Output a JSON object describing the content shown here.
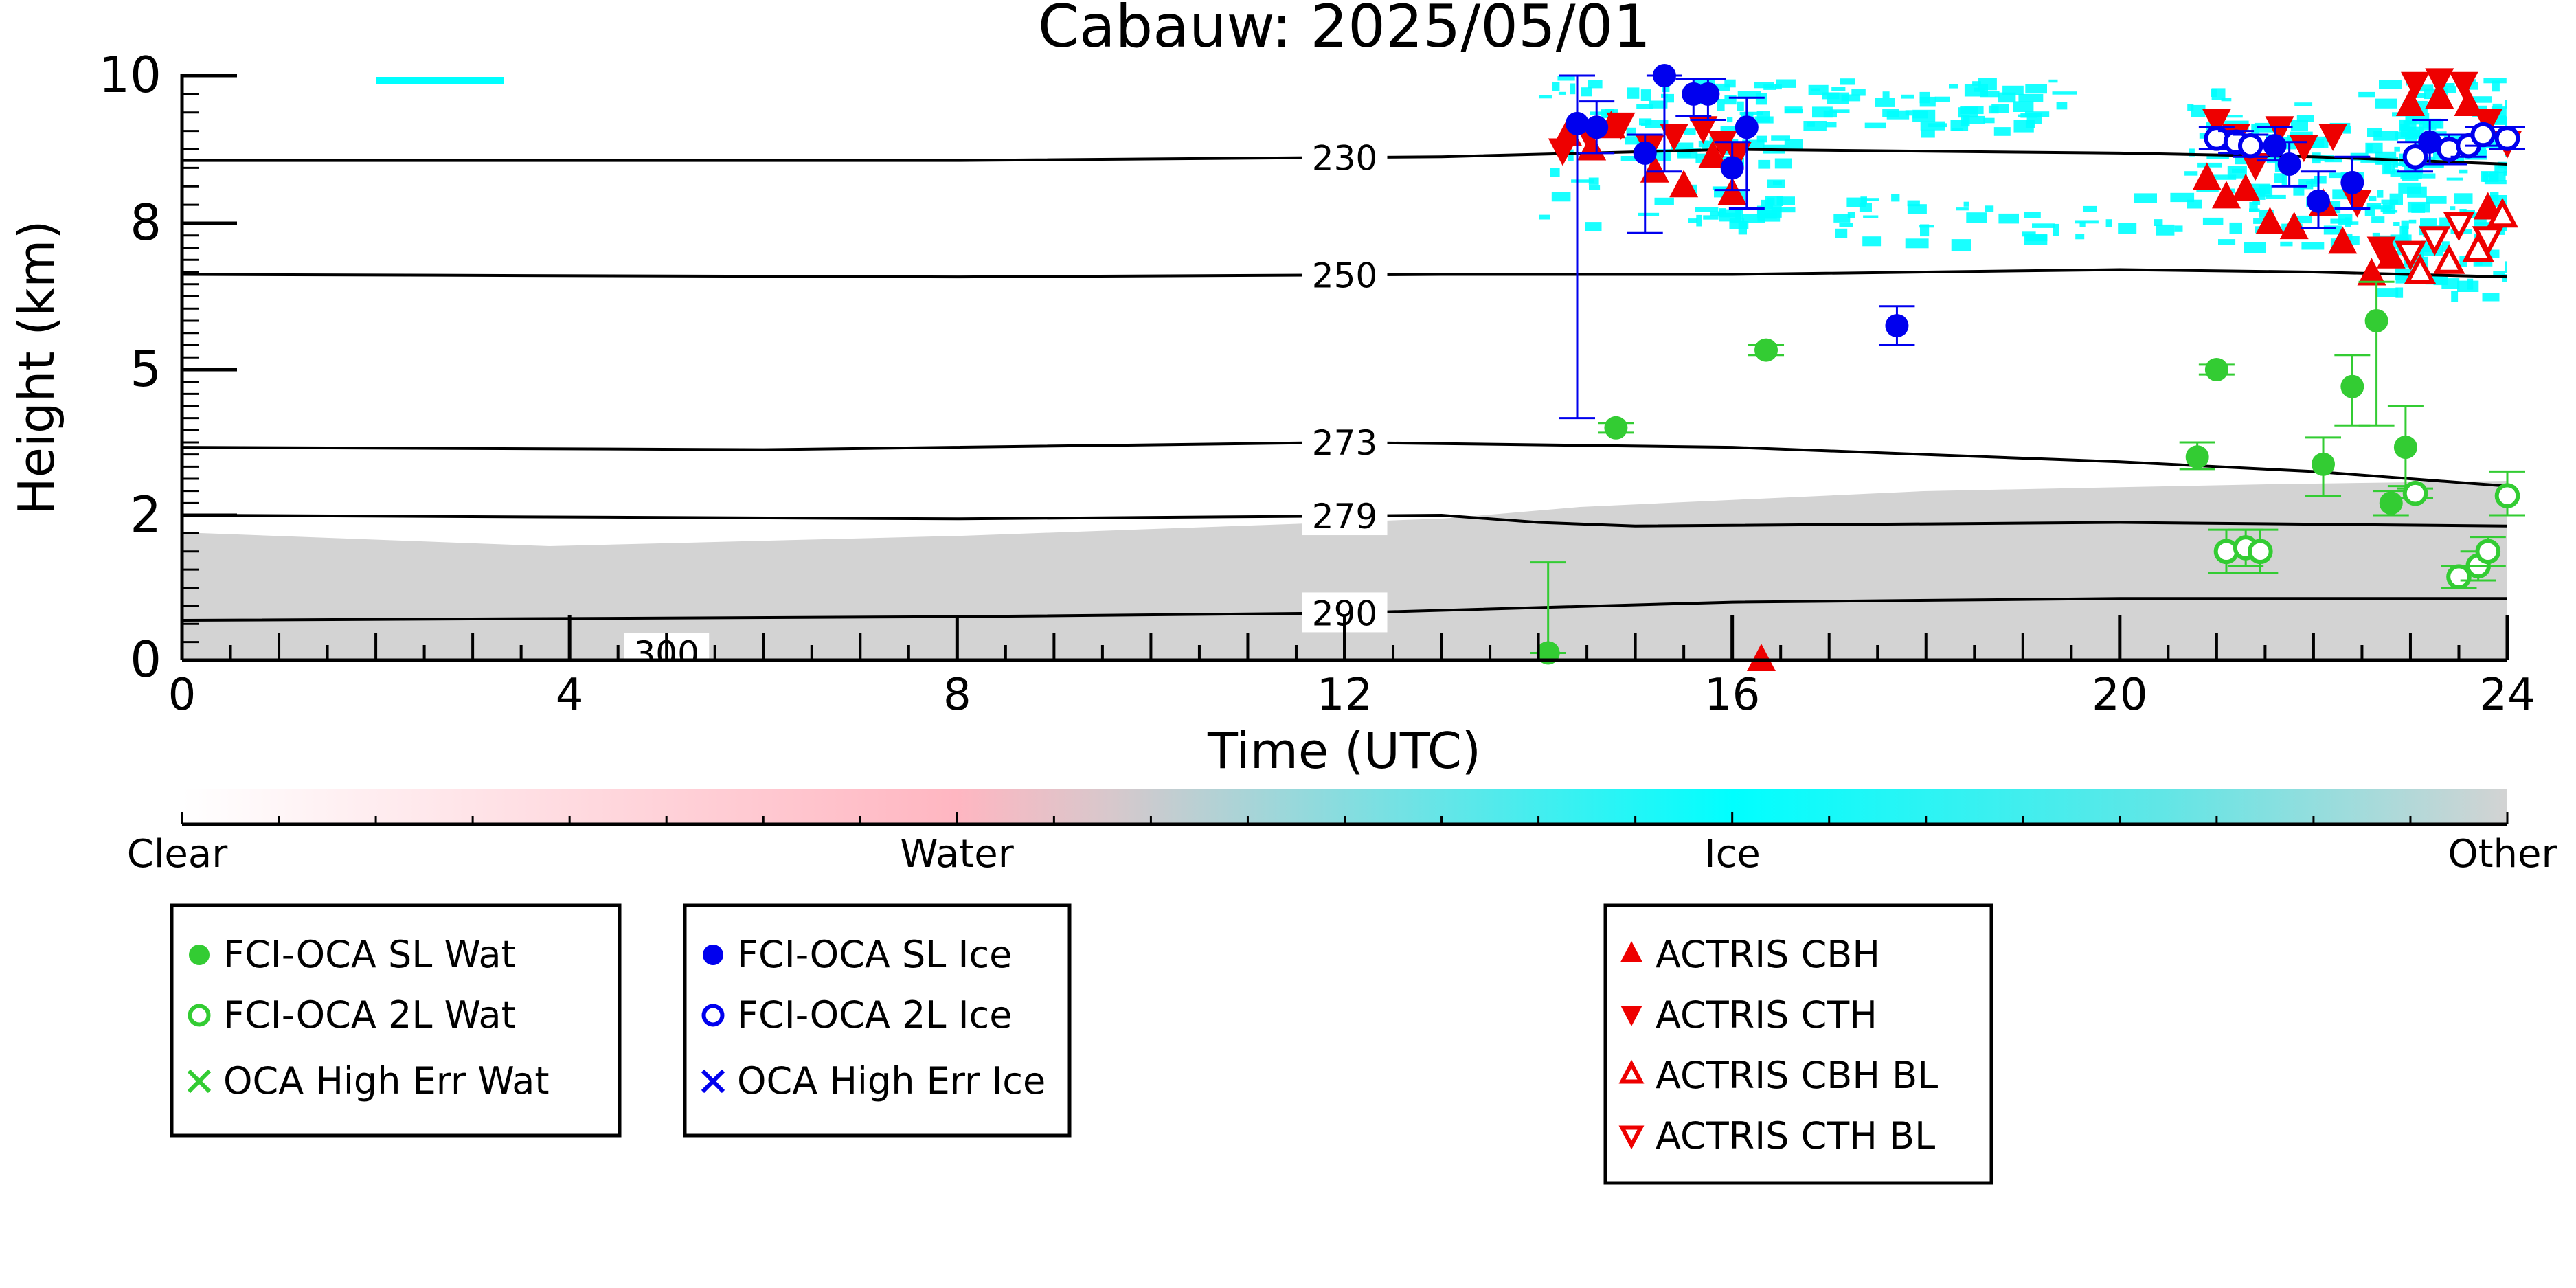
{
  "chart_data": {
    "type": "scatter",
    "title": "Cabauw: 2025/05/01",
    "xlabel": "Time (UTC)",
    "ylabel": "Height (km)",
    "xlim": [
      0,
      24
    ],
    "ylim": [
      0,
      10
    ],
    "x_ticks": [
      0,
      4,
      8,
      12,
      16,
      20,
      24
    ],
    "y_ticks": [
      0,
      2,
      5,
      8,
      10
    ],
    "y_tick_labels": [
      "0",
      "2",
      "5",
      "8",
      "10"
    ],
    "y_scale": "nonlinear",
    "colorbar": {
      "labels": [
        "Clear",
        "Water",
        "Ice",
        "Other"
      ],
      "colors": [
        "#ffffff",
        "#ffb6c1",
        "#00ffff",
        "#d3d3d3"
      ]
    },
    "temperature_contours": [
      {
        "label": "230",
        "points": [
          [
            0,
            8.85
          ],
          [
            8,
            8.85
          ],
          [
            13,
            8.9
          ],
          [
            16,
            9.0
          ],
          [
            20,
            8.95
          ],
          [
            22,
            8.9
          ],
          [
            24,
            8.8
          ]
        ]
      },
      {
        "label": "250",
        "points": [
          [
            0,
            6.95
          ],
          [
            8,
            6.9
          ],
          [
            13,
            6.95
          ],
          [
            16,
            6.95
          ],
          [
            20,
            7.05
          ],
          [
            22,
            7.0
          ],
          [
            24,
            6.9
          ]
        ]
      },
      {
        "label": "273",
        "points": [
          [
            0,
            3.4
          ],
          [
            6,
            3.35
          ],
          [
            12,
            3.5
          ],
          [
            16,
            3.4
          ],
          [
            20,
            3.1
          ],
          [
            22,
            2.9
          ],
          [
            24,
            2.6
          ]
        ]
      },
      {
        "label": "279",
        "points": [
          [
            0,
            2.0
          ],
          [
            8,
            1.95
          ],
          [
            13,
            2.0
          ],
          [
            14,
            1.9
          ],
          [
            15,
            1.85
          ],
          [
            20,
            1.9
          ],
          [
            24,
            1.85
          ]
        ]
      },
      {
        "label": "290",
        "points": [
          [
            0,
            0.55
          ],
          [
            8,
            0.6
          ],
          [
            12,
            0.65
          ],
          [
            16,
            0.8
          ],
          [
            20,
            0.85
          ],
          [
            24,
            0.85
          ]
        ]
      },
      {
        "label": "300",
        "points": [
          [
            3,
            0.0
          ],
          [
            5,
            0.0
          ],
          [
            8,
            0.0
          ]
        ]
      }
    ],
    "series": [
      {
        "name": "FCI-OCA SL Wat",
        "marker": "filled-circle",
        "color": "#33cc33",
        "points": [
          [
            14.1,
            0.1,
            0.1,
            1.35
          ],
          [
            14.8,
            3.8,
            3.7,
            3.9
          ],
          [
            16.35,
            5.4,
            5.3,
            5.5
          ],
          [
            20.8,
            3.2,
            2.95,
            3.5
          ],
          [
            21.0,
            5.0,
            4.9,
            5.1
          ],
          [
            22.1,
            3.05,
            2.4,
            3.6
          ],
          [
            22.4,
            4.65,
            3.85,
            5.3
          ],
          [
            22.65,
            6.0,
            3.85,
            6.8
          ],
          [
            22.8,
            2.25,
            2.0,
            2.5
          ],
          [
            22.95,
            3.4,
            2.6,
            4.25
          ]
        ]
      },
      {
        "name": "FCI-OCA 2L Wat",
        "marker": "open-circle",
        "color": "#33cc33",
        "points": [
          [
            21.1,
            1.5,
            1.2,
            1.8
          ],
          [
            21.3,
            1.55,
            1.3,
            1.8
          ],
          [
            21.45,
            1.5,
            1.2,
            1.8
          ],
          [
            23.05,
            2.45,
            2.35,
            2.55
          ],
          [
            23.5,
            1.15,
            1.0,
            1.3
          ],
          [
            23.7,
            1.3,
            1.1,
            1.5
          ],
          [
            23.8,
            1.5,
            1.3,
            1.7
          ],
          [
            24.0,
            2.4,
            2.0,
            2.9
          ]
        ]
      },
      {
        "name": "OCA High Err Wat",
        "marker": "x",
        "color": "#33cc33",
        "points": []
      },
      {
        "name": "FCI-OCA SL Ice",
        "marker": "filled-circle",
        "color": "#0000ee",
        "points": [
          [
            14.4,
            9.35,
            4.0,
            10.0
          ],
          [
            14.6,
            9.3,
            8.95,
            9.65
          ],
          [
            15.1,
            8.95,
            7.8,
            9.2
          ],
          [
            15.3,
            10.0,
            8.7,
            10.0
          ],
          [
            15.6,
            9.75,
            9.45,
            9.95
          ],
          [
            15.75,
            9.75,
            9.4,
            9.95
          ],
          [
            16.0,
            8.75,
            8.45,
            9.1
          ],
          [
            16.15,
            9.3,
            8.2,
            9.7
          ],
          [
            17.7,
            5.9,
            5.5,
            6.3
          ],
          [
            21.6,
            9.05,
            8.85,
            9.3
          ],
          [
            21.75,
            8.8,
            8.5,
            9.1
          ],
          [
            22.05,
            8.3,
            7.9,
            8.7
          ],
          [
            22.4,
            8.55,
            8.2,
            8.9
          ],
          [
            23.2,
            9.1,
            8.8,
            9.4
          ]
        ]
      },
      {
        "name": "FCI-OCA 2L Ice",
        "marker": "open-circle",
        "color": "#0000ee",
        "points": [
          [
            21.0,
            9.15,
            9.0,
            9.3
          ],
          [
            21.2,
            9.1,
            8.95,
            9.25
          ],
          [
            21.35,
            9.05,
            8.9,
            9.2
          ],
          [
            23.05,
            8.9,
            8.7,
            9.1
          ],
          [
            23.4,
            9.0,
            8.8,
            9.2
          ],
          [
            23.6,
            9.05,
            8.9,
            9.2
          ],
          [
            23.75,
            9.2,
            9.05,
            9.3
          ],
          [
            24.0,
            9.15,
            9.0,
            9.3
          ]
        ]
      },
      {
        "name": "OCA High Err Ice",
        "marker": "x",
        "color": "#0000ee",
        "points": []
      },
      {
        "name": "ACTRIS CBH",
        "marker": "triangle-up",
        "color": "#ee0000",
        "points": [
          [
            14.3,
            9.2
          ],
          [
            14.55,
            9.0
          ],
          [
            14.75,
            9.3
          ],
          [
            15.2,
            8.7
          ],
          [
            15.5,
            8.5
          ],
          [
            15.8,
            8.9
          ],
          [
            16.0,
            8.4
          ],
          [
            16.3,
            0.0
          ],
          [
            20.9,
            8.6
          ],
          [
            21.1,
            8.35
          ],
          [
            21.3,
            8.45
          ],
          [
            21.55,
            8.0
          ],
          [
            21.8,
            7.9
          ],
          [
            22.1,
            8.25
          ],
          [
            22.3,
            7.6
          ],
          [
            22.6,
            6.95
          ],
          [
            22.8,
            7.3
          ],
          [
            23.0,
            9.6
          ],
          [
            23.3,
            9.7
          ],
          [
            23.6,
            9.6
          ],
          [
            23.8,
            8.2
          ]
        ]
      },
      {
        "name": "ACTRIS CTH",
        "marker": "triangle-down",
        "color": "#ee0000",
        "points": [
          [
            14.25,
            9.0
          ],
          [
            14.5,
            9.25
          ],
          [
            14.85,
            9.35
          ],
          [
            15.15,
            9.05
          ],
          [
            15.4,
            9.2
          ],
          [
            15.7,
            9.3
          ],
          [
            15.9,
            9.1
          ],
          [
            16.05,
            8.95
          ],
          [
            21.0,
            9.4
          ],
          [
            21.2,
            9.2
          ],
          [
            21.4,
            8.8
          ],
          [
            21.65,
            9.3
          ],
          [
            21.9,
            9.05
          ],
          [
            22.2,
            9.2
          ],
          [
            22.45,
            8.3
          ],
          [
            22.7,
            7.5
          ],
          [
            23.05,
            9.9
          ],
          [
            23.3,
            9.95
          ],
          [
            23.55,
            9.9
          ],
          [
            23.8,
            9.4
          ],
          [
            24.0,
            9.1
          ]
        ]
      },
      {
        "name": "ACTRIS CBH BL",
        "marker": "open-triangle-up",
        "color": "#ee0000",
        "points": [
          [
            23.1,
            7.0
          ],
          [
            23.4,
            7.2
          ],
          [
            23.7,
            7.45
          ],
          [
            23.95,
            8.1
          ]
        ]
      },
      {
        "name": "ACTRIS CTH BL",
        "marker": "open-triangle-down",
        "color": "#ee0000",
        "points": [
          [
            23.0,
            7.4
          ],
          [
            23.25,
            7.7
          ],
          [
            23.5,
            8.0
          ],
          [
            23.8,
            7.7
          ]
        ]
      }
    ]
  }
}
